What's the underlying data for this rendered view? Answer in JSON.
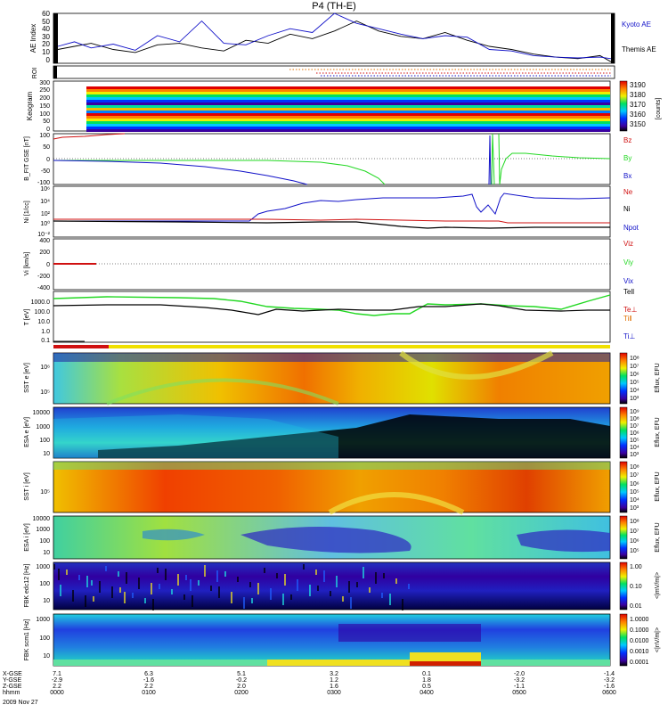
{
  "title": "P4 (TH-E)",
  "colors": {
    "red": "#d01010",
    "green": "#22d822",
    "blue": "#1010c8",
    "black": "#000000",
    "orange": "#e07000"
  },
  "chart_data": [
    {
      "type": "line",
      "panel": "ae",
      "ylabel": "AE Index",
      "yticks": [
        "60",
        "50",
        "40",
        "30",
        "20",
        "10",
        "0"
      ],
      "series": [
        {
          "name": "Kyoto AE",
          "color": "#1010c8",
          "x": [
            0,
            0.03,
            0.06,
            0.1,
            0.14,
            0.18,
            0.22,
            0.26,
            0.3,
            0.34,
            0.38,
            0.42,
            0.46,
            0.5,
            0.54,
            0.58,
            0.62,
            0.66,
            0.7,
            0.74,
            0.78,
            0.82,
            0.86,
            0.9,
            0.94,
            0.98,
            1
          ],
          "values": [
            22,
            28,
            20,
            25,
            17,
            36,
            28,
            55,
            26,
            24,
            36,
            45,
            40,
            65,
            52,
            45,
            38,
            32,
            36,
            34,
            18,
            16,
            10,
            8,
            7,
            8,
            6
          ]
        },
        {
          "name": "Themis AE",
          "color": "#000000",
          "x": [
            0,
            0.03,
            0.06,
            0.1,
            0.14,
            0.18,
            0.22,
            0.26,
            0.3,
            0.34,
            0.38,
            0.42,
            0.46,
            0.5,
            0.54,
            0.58,
            0.62,
            0.66,
            0.7,
            0.74,
            0.78,
            0.82,
            0.86,
            0.9,
            0.94,
            0.98,
            1
          ],
          "values": [
            18,
            22,
            26,
            18,
            14,
            24,
            26,
            20,
            16,
            30,
            26,
            38,
            32,
            42,
            55,
            42,
            35,
            32,
            40,
            30,
            22,
            18,
            12,
            8,
            6,
            10,
            2
          ]
        }
      ]
    },
    {
      "type": "line",
      "panel": "roi",
      "ylabel": "ROI"
    },
    {
      "type": "heatmap",
      "panel": "keogram",
      "ylabel": "Keogram",
      "yticks": [
        "300",
        "250",
        "200",
        "150",
        "100",
        "50",
        "0"
      ],
      "colorbar": {
        "ticks": [
          "3190",
          "3180",
          "3170",
          "3160",
          "3150"
        ],
        "label": "[counts]"
      }
    },
    {
      "type": "line",
      "panel": "bfield",
      "ylabel": "B_FIT GSE [nT]",
      "yticks": [
        "100",
        "50",
        "0",
        "-50",
        "-100"
      ],
      "series": [
        {
          "name": "Bz",
          "color": "#d01010"
        },
        {
          "name": "By",
          "color": "#22d822"
        },
        {
          "name": "Bx",
          "color": "#1010c8"
        }
      ]
    },
    {
      "type": "line",
      "panel": "density",
      "ylabel": "Ni [1/cc]",
      "yticks": [
        "10⁶",
        "10⁴",
        "10²",
        "10⁰",
        "10⁻²"
      ],
      "series": [
        {
          "name": "Ne",
          "color": "#d01010"
        },
        {
          "name": "Ni",
          "color": "#1010c8"
        },
        {
          "name": "Npot",
          "color": "#1010c8"
        }
      ]
    },
    {
      "type": "line",
      "panel": "velocity",
      "ylabel": "Vi [km/s]",
      "yticks": [
        "400",
        "200",
        "0",
        "-200",
        "-400"
      ],
      "series": [
        {
          "name": "Viz",
          "color": "#d01010"
        },
        {
          "name": "Viy",
          "color": "#22d822"
        },
        {
          "name": "Vix",
          "color": "#1010c8"
        }
      ]
    },
    {
      "type": "line",
      "panel": "temperature",
      "ylabel": "T [eV]",
      "yticks": [
        "1000.0",
        "100.0",
        "10.0",
        "1.0",
        "0.1"
      ],
      "series": [
        {
          "name": "Tell",
          "color": "#000000"
        },
        {
          "name": "Te⊥",
          "color": "#d01010"
        },
        {
          "name": "Ti‖",
          "color": "#e07000"
        },
        {
          "name": "Ti⊥",
          "color": "#1010c8"
        }
      ]
    },
    {
      "type": "heatmap",
      "panel": "sst_e",
      "ylabel": "SST e [eV]",
      "yticks": [
        "10⁶",
        "10⁵"
      ],
      "colorbar": {
        "ticks": [
          "10⁸",
          "10⁷",
          "10⁶",
          "10⁵",
          "10⁴",
          "10³"
        ],
        "label": "Eflux, EFU"
      }
    },
    {
      "type": "heatmap",
      "panel": "esa_e",
      "ylabel": "ESA e [eV]",
      "yticks": [
        "10000",
        "1000",
        "100",
        "10"
      ],
      "colorbar": {
        "ticks": [
          "10⁹",
          "10⁸",
          "10⁷",
          "10⁶",
          "10⁵",
          "10⁴",
          "10³"
        ],
        "label": "Eflux, EFU"
      }
    },
    {
      "type": "heatmap",
      "panel": "sst_i",
      "ylabel": "SST i [eV]",
      "yticks": [
        "10⁵"
      ],
      "colorbar": {
        "ticks": [
          "10⁸",
          "10⁷",
          "10⁶",
          "10⁵",
          "10⁴",
          "10³"
        ],
        "label": "Eflux, EFU"
      }
    },
    {
      "type": "heatmap",
      "panel": "esa_i",
      "ylabel": "ESA i [eV]",
      "yticks": [
        "10000",
        "1000",
        "100",
        "10"
      ],
      "colorbar": {
        "ticks": [
          "10⁸",
          "10⁷",
          "10⁶",
          "10⁵"
        ],
        "label": "Eflux, EFU"
      }
    },
    {
      "type": "heatmap",
      "panel": "fbk_e",
      "ylabel": "FBK edc12 [Hz]",
      "yticks": [
        "1000",
        "100",
        "10"
      ],
      "colorbar": {
        "ticks": [
          "1.00",
          "0.10",
          "0.01"
        ],
        "label": "<|mV/m|>"
      }
    },
    {
      "type": "heatmap",
      "panel": "fbk_b",
      "ylabel": "FBK scm1 [Hz]",
      "yticks": [
        "1000",
        "100",
        "10"
      ],
      "colorbar": {
        "ticks": [
          "1.0000",
          "0.1000",
          "0.0100",
          "0.0010",
          "0.0001"
        ],
        "label": "<|nV/m|>"
      }
    }
  ],
  "xaxis": {
    "rows": [
      {
        "label": "X-GSE",
        "values": [
          "7.1",
          "6.3",
          "5.1",
          "3.2",
          "0.1",
          "-2.0",
          "-1.4"
        ]
      },
      {
        "label": "Y-GSE",
        "values": [
          "-2.9",
          "-1.6",
          "-0.2",
          "1.2",
          "1.8",
          "-3.2",
          "-3.2"
        ]
      },
      {
        "label": "Z-GSE",
        "values": [
          "2.2",
          "2.2",
          "2.0",
          "1.6",
          "0.5",
          "-1.1",
          "-1.6"
        ]
      },
      {
        "label": "hhmm",
        "values": [
          "0000",
          "0100",
          "0200",
          "0300",
          "0400",
          "0500",
          "0600"
        ]
      }
    ],
    "date": "2009 Nov 27"
  }
}
